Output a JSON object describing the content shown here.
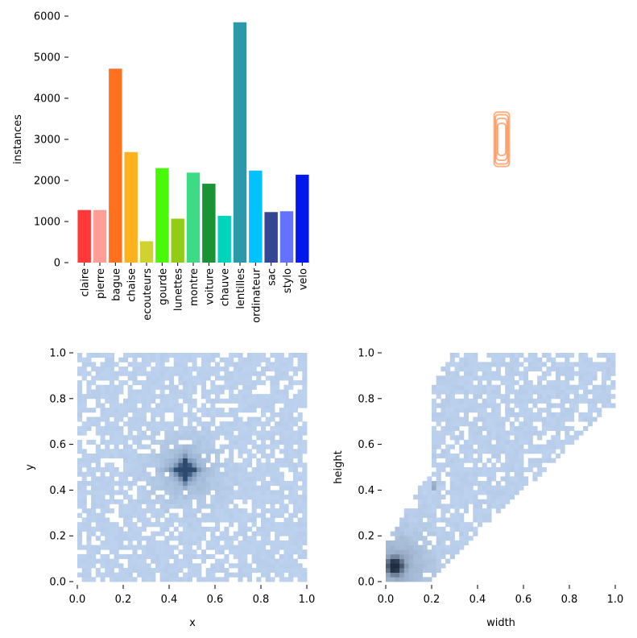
{
  "chart_data": [
    {
      "type": "bar",
      "categories": [
        "claire",
        "pierre",
        "bague",
        "chaise",
        "ecouteurs",
        "gourde",
        "lunettes",
        "montre",
        "voiture",
        "chauve",
        "lentilles",
        "ordinateur",
        "sac",
        "stylo",
        "velo"
      ],
      "values": [
        1280,
        1280,
        4720,
        2690,
        520,
        2300,
        1070,
        2190,
        1920,
        1140,
        5850,
        2240,
        1230,
        1250,
        2140
      ],
      "colors": [
        "#ff3838",
        "#ff9d97",
        "#ff701f",
        "#ffb21d",
        "#cfd231",
        "#48f90a",
        "#92cc17",
        "#3ddb86",
        "#1a9334",
        "#00d4bb",
        "#2c99a8",
        "#00c2ff",
        "#344593",
        "#6473ff",
        "#0018ec"
      ],
      "xlabel": "",
      "ylabel": "instances",
      "ylim": [
        0,
        6000
      ],
      "yticks": [
        "0",
        "1000",
        "2000",
        "3000",
        "4000",
        "5000",
        "6000"
      ],
      "grid": false
    },
    {
      "type": "box-outlines",
      "note_color": "#ff701f",
      "boxes": [
        {
          "cx": 0.5,
          "cy": 0.5,
          "w": 0.055,
          "h": 0.2
        },
        {
          "cx": 0.5,
          "cy": 0.5,
          "w": 0.045,
          "h": 0.17
        },
        {
          "cx": 0.5,
          "cy": 0.5,
          "w": 0.065,
          "h": 0.22
        },
        {
          "cx": 0.5,
          "cy": 0.5,
          "w": 0.035,
          "h": 0.13
        }
      ]
    },
    {
      "type": "heatmap",
      "xlabel": "x",
      "ylabel": "y",
      "xlim": [
        0.0,
        1.0
      ],
      "ylim": [
        0.0,
        1.0
      ],
      "xticks": [
        "0.0",
        "0.2",
        "0.4",
        "0.6",
        "0.8",
        "1.0"
      ],
      "yticks": [
        "0.0",
        "0.2",
        "0.4",
        "0.6",
        "0.8",
        "1.0"
      ],
      "peak": [
        0.47,
        0.49
      ],
      "base_color": "#bcd2ee",
      "peak_color": "#2b4a6e"
    },
    {
      "type": "heatmap",
      "xlabel": "width",
      "ylabel": "height",
      "xlim": [
        0.0,
        1.0
      ],
      "ylim": [
        0.0,
        1.0
      ],
      "xticks": [
        "0.0",
        "0.2",
        "0.4",
        "0.6",
        "0.8",
        "1.0"
      ],
      "yticks": [
        "0.0",
        "0.2",
        "0.4",
        "0.6",
        "0.8",
        "1.0"
      ],
      "peak": [
        0.04,
        0.07
      ],
      "base_color": "#bcd2ee",
      "peak_color": "#1f2d40"
    }
  ]
}
